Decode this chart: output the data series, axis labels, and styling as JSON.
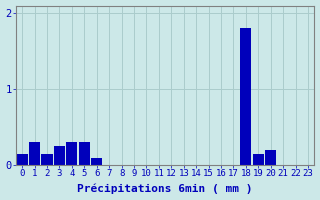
{
  "values": [
    0.15,
    0.3,
    0.15,
    0.25,
    0.3,
    0.3,
    0.1,
    0,
    0,
    0,
    0,
    0,
    0,
    0,
    0,
    0,
    0,
    0,
    1.8,
    0.15,
    0.2,
    0,
    0,
    0
  ],
  "bar_color": "#0000bb",
  "background_color": "#cce8e8",
  "grid_color": "#aacccc",
  "axis_color": "#808080",
  "text_color": "#0000bb",
  "xlabel": "Précipitations 6min ( mm )",
  "ylim": [
    0,
    2.1
  ],
  "yticks": [
    0,
    1,
    2
  ],
  "hour_labels": [
    "0",
    "1",
    "2",
    "3",
    "4",
    "5",
    "6",
    "7",
    "8",
    "9",
    "10",
    "11",
    "12",
    "13",
    "14",
    "15",
    "16",
    "17",
    "18",
    "19",
    "20",
    "21",
    "22",
    "23"
  ],
  "label_fontsize": 6.5,
  "xlabel_fontsize": 8.0
}
